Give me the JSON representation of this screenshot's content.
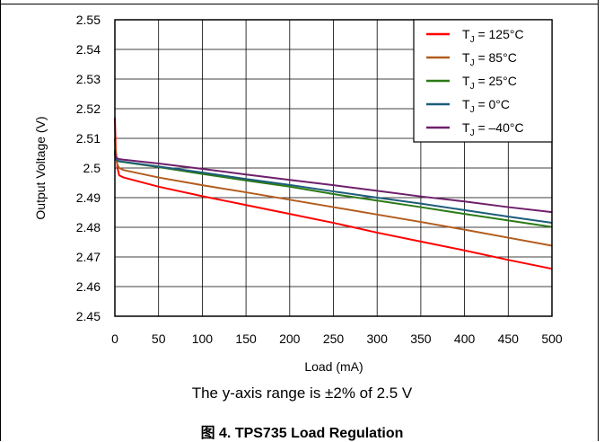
{
  "chart_data": {
    "type": "line",
    "title": "",
    "xlabel": "Load (mA)",
    "ylabel": "Output Voltage (V)",
    "xlim": [
      0,
      500
    ],
    "ylim": [
      2.45,
      2.55
    ],
    "x_ticks": [
      "0",
      "50",
      "100",
      "150",
      "200",
      "250",
      "300",
      "350",
      "400",
      "450",
      "500"
    ],
    "y_ticks": [
      "2.45",
      "2.46",
      "2.47",
      "2.48",
      "2.49",
      "2.5",
      "2.51",
      "2.52",
      "2.53",
      "2.54",
      "2.55"
    ],
    "grid": true,
    "legend_position": "top-right",
    "series": [
      {
        "name": "T_J = 125°C",
        "legend_sub": "J",
        "legend_rest": " = 125°C",
        "color": "#ff0000",
        "x": [
          0,
          1,
          3,
          5,
          10,
          50,
          100,
          150,
          200,
          250,
          300,
          350,
          400,
          450,
          500
        ],
        "y": [
          2.517,
          2.506,
          2.5,
          2.4975,
          2.4968,
          2.4937,
          2.4905,
          2.4875,
          2.4845,
          2.4815,
          2.4782,
          2.4752,
          2.4722,
          2.469,
          2.466
        ]
      },
      {
        "name": "T_J = 85°C",
        "legend_sub": "J",
        "legend_rest": " = 85°C",
        "color": "#b25c1e",
        "x": [
          0,
          1,
          3,
          5,
          10,
          50,
          100,
          150,
          200,
          250,
          300,
          350,
          400,
          450,
          500
        ],
        "y": [
          2.51,
          2.504,
          2.501,
          2.5,
          2.4993,
          2.4968,
          2.4942,
          2.4918,
          2.4893,
          2.4868,
          2.4843,
          2.4818,
          2.4792,
          2.4765,
          2.4738
        ]
      },
      {
        "name": "T_J = 25°C",
        "legend_sub": "J",
        "legend_rest": " = 25°C",
        "color": "#2b7b16",
        "x": [
          0,
          1,
          3,
          5,
          10,
          50,
          100,
          150,
          200,
          250,
          300,
          350,
          400,
          450,
          500
        ],
        "y": [
          2.506,
          2.503,
          2.5025,
          2.5022,
          2.502,
          2.5003,
          2.498,
          2.4958,
          2.4937,
          2.4912,
          2.489,
          2.4868,
          2.4845,
          2.4823,
          2.4801
        ]
      },
      {
        "name": "T_J = 0°C",
        "legend_sub": "J",
        "legend_rest": " = 0°C",
        "color": "#1d5c7a",
        "x": [
          0,
          1,
          3,
          5,
          10,
          50,
          100,
          150,
          200,
          250,
          300,
          350,
          400,
          450,
          500
        ],
        "y": [
          2.505,
          2.503,
          2.5025,
          2.5023,
          2.5021,
          2.5005,
          2.4985,
          2.4963,
          2.4943,
          2.4921,
          2.49,
          2.488,
          2.4858,
          2.4836,
          2.4815
        ]
      },
      {
        "name": "T_J = –40°C",
        "legend_sub": "J",
        "legend_rest": " = –40°C",
        "color": "#6e1f6b",
        "x": [
          0,
          1,
          3,
          5,
          10,
          50,
          100,
          150,
          200,
          250,
          300,
          350,
          400,
          450,
          500
        ],
        "y": [
          2.505,
          2.5035,
          2.5032,
          2.503,
          2.5028,
          2.5015,
          2.4997,
          2.4978,
          2.496,
          2.4942,
          2.4923,
          2.4904,
          2.4887,
          2.4868,
          2.4851
        ]
      }
    ]
  },
  "note": "The y-axis range is ±2% of 2.5 V",
  "caption": "图 4. TPS735 Load Regulation"
}
